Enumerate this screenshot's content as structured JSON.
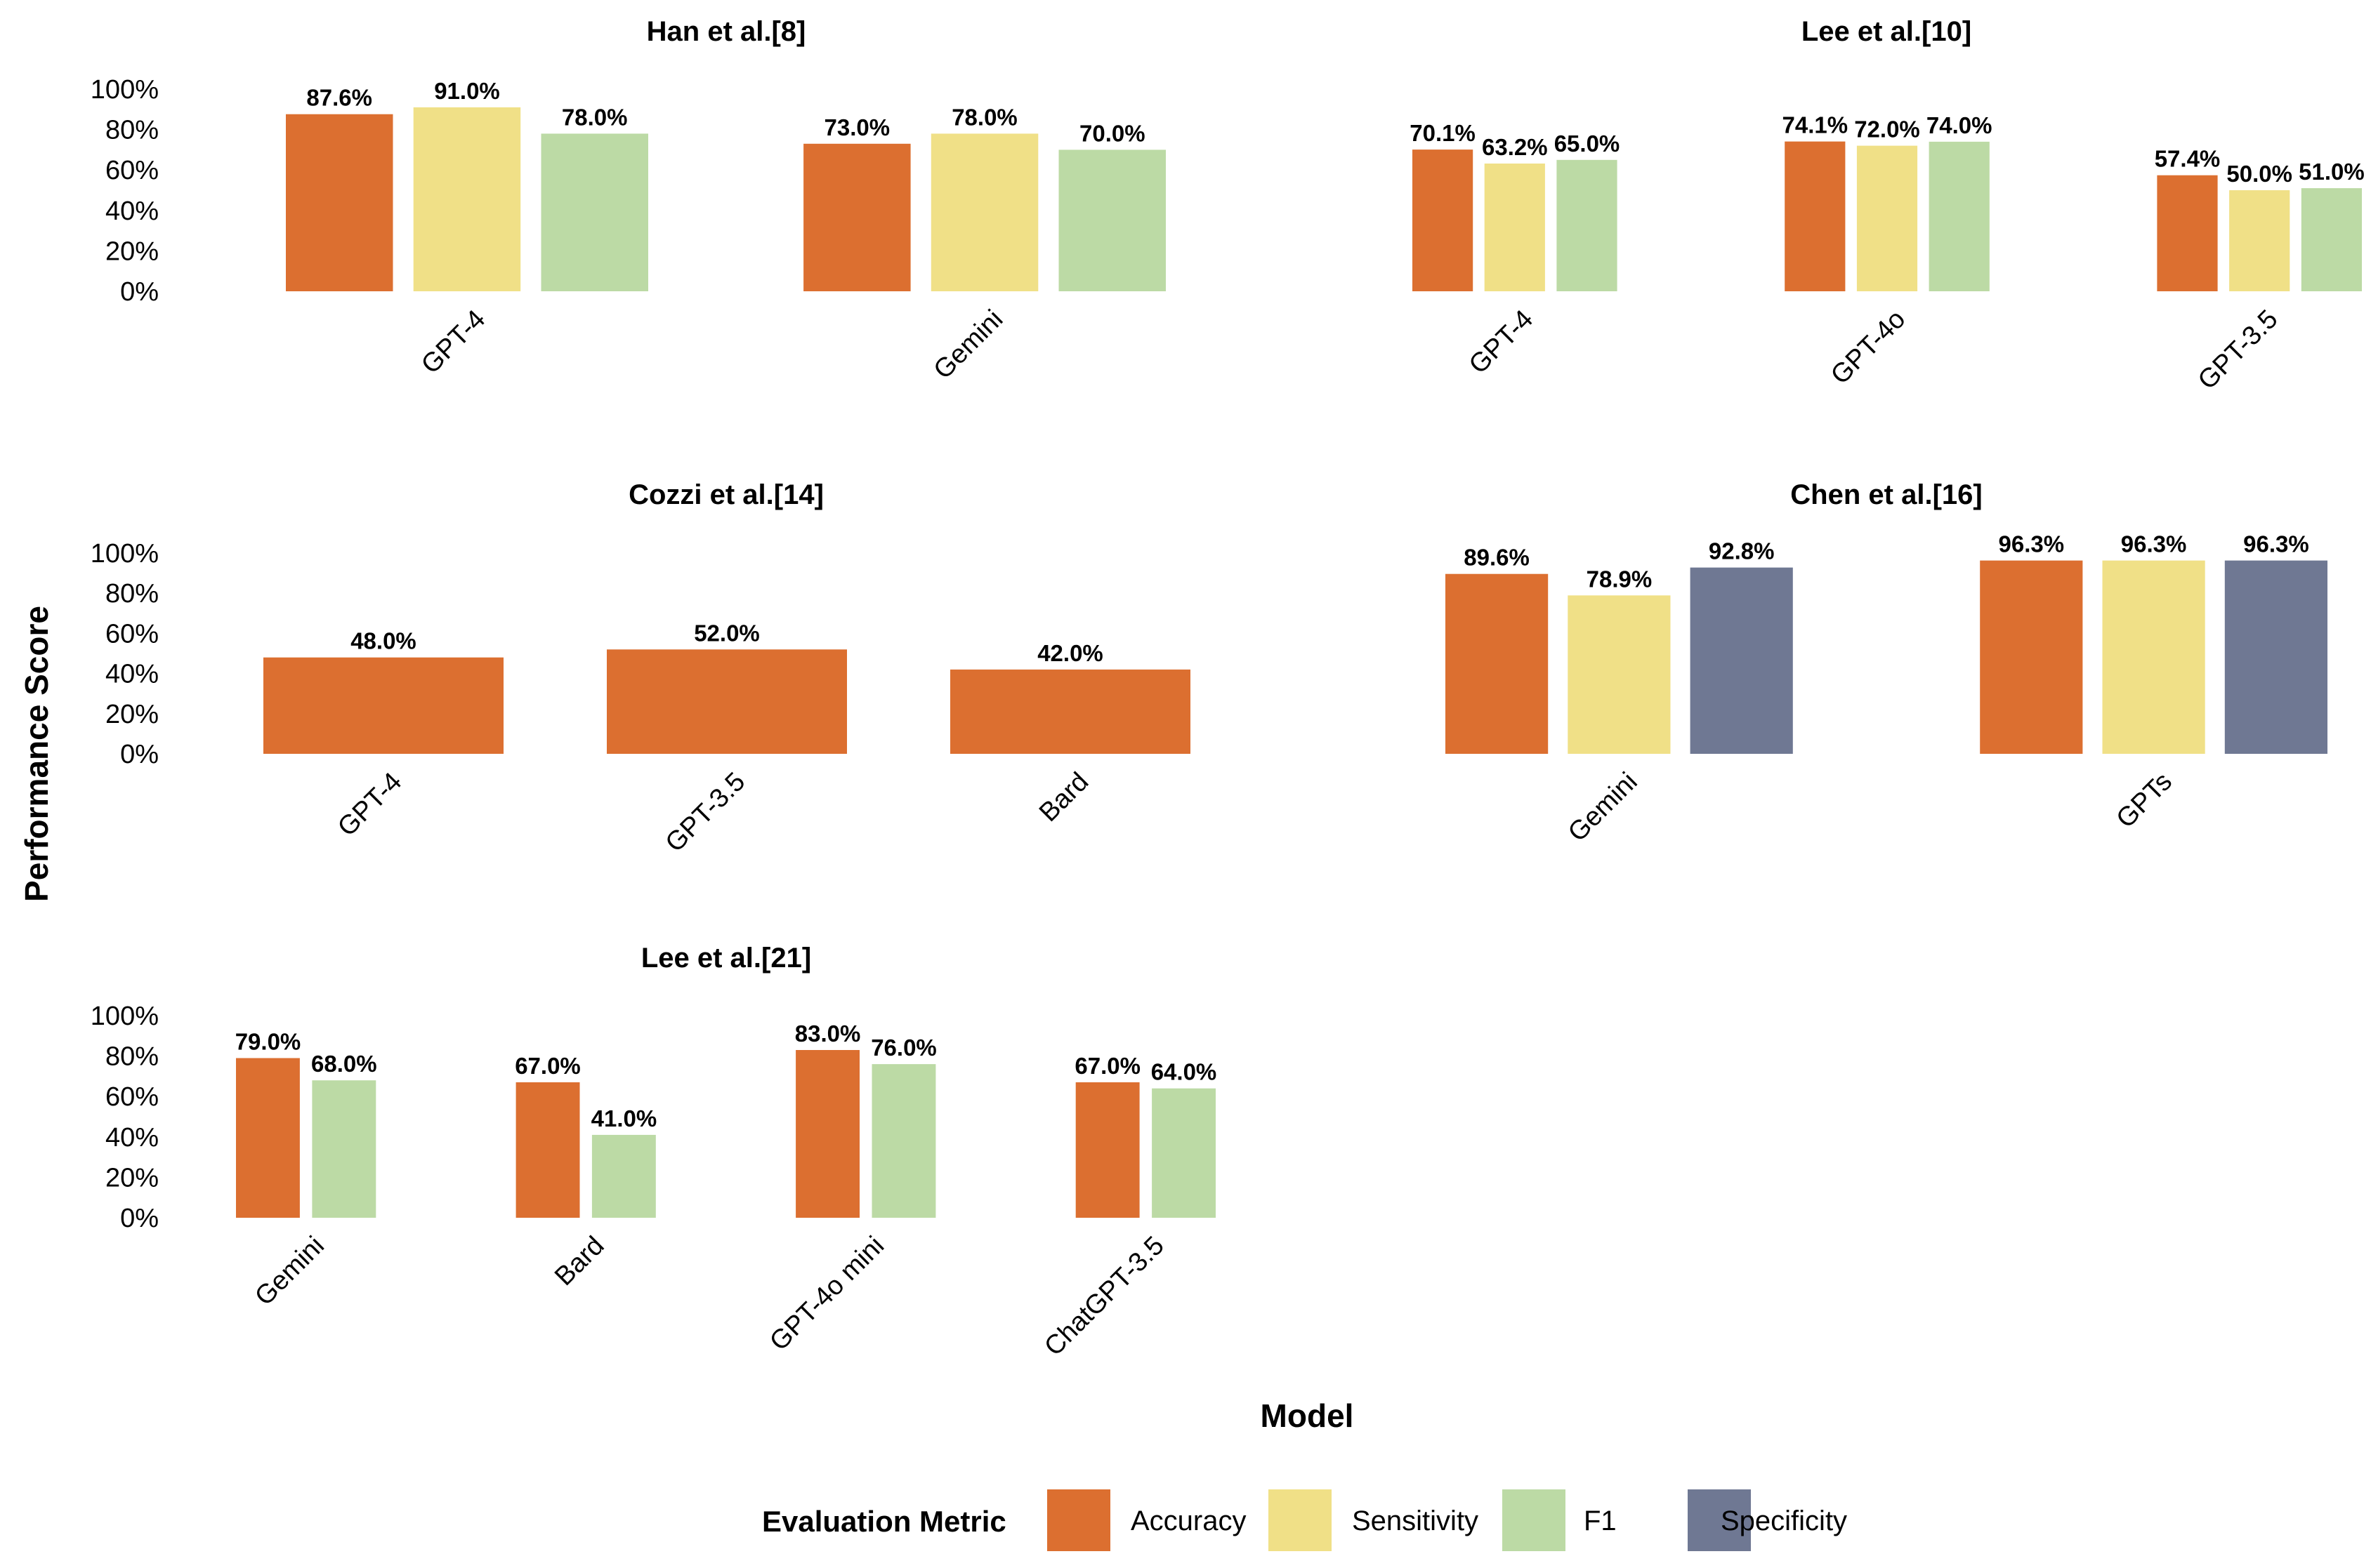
{
  "chart_data": {
    "type": "bar",
    "xlabel": "Model",
    "ylabel": "Performance Score",
    "ylim": [
      0,
      100
    ],
    "yticks": [
      "0%",
      "20%",
      "40%",
      "60%",
      "80%",
      "100%"
    ],
    "grid": false,
    "legend": {
      "title": "Evaluation Metric",
      "placement": "bottom",
      "entries": [
        {
          "name": "Accuracy",
          "color": "#DC6F30"
        },
        {
          "name": "Sensitivity",
          "color": "#F0E087"
        },
        {
          "name": "F1",
          "color": "#BCDAA5"
        },
        {
          "name": "Specificity",
          "color": "#6F7893"
        }
      ]
    },
    "panels": [
      {
        "title": "Han et al.[8]",
        "categories": [
          "GPT-4",
          "Gemini"
        ],
        "series": [
          {
            "name": "Accuracy",
            "values": [
              87.6,
              73.0
            ]
          },
          {
            "name": "Sensitivity",
            "values": [
              91.0,
              78.0
            ]
          },
          {
            "name": "F1",
            "values": [
              78.0,
              70.0
            ]
          }
        ]
      },
      {
        "title": "Lee et al.[10]",
        "categories": [
          "GPT-4",
          "GPT-4o",
          "GPT-3.5"
        ],
        "series": [
          {
            "name": "Accuracy",
            "values": [
              70.1,
              74.1,
              57.4
            ]
          },
          {
            "name": "Sensitivity",
            "values": [
              63.2,
              72.0,
              50.0
            ]
          },
          {
            "name": "F1",
            "values": [
              65.0,
              74.0,
              51.0
            ]
          }
        ]
      },
      {
        "title": "Cozzi et al.[14]",
        "categories": [
          "GPT-4",
          "GPT-3.5",
          "Bard"
        ],
        "series": [
          {
            "name": "Accuracy",
            "values": [
              48.0,
              52.0,
              42.0
            ]
          }
        ]
      },
      {
        "title": "Chen et al.[16]",
        "categories": [
          "Gemini",
          "GPTs"
        ],
        "series": [
          {
            "name": "Accuracy",
            "values": [
              89.6,
              96.3
            ]
          },
          {
            "name": "Sensitivity",
            "values": [
              78.9,
              96.3
            ]
          },
          {
            "name": "Specificity",
            "values": [
              92.8,
              96.3
            ]
          }
        ]
      },
      {
        "title": "Lee et al.[21]",
        "categories": [
          "Gemini",
          "Bard",
          "GPT-4o mini",
          "ChatGPT-3.5"
        ],
        "series": [
          {
            "name": "Accuracy",
            "values": [
              79.0,
              67.0,
              83.0,
              67.0
            ]
          },
          {
            "name": "F1",
            "values": [
              68.0,
              41.0,
              76.0,
              64.0
            ]
          }
        ]
      }
    ]
  }
}
